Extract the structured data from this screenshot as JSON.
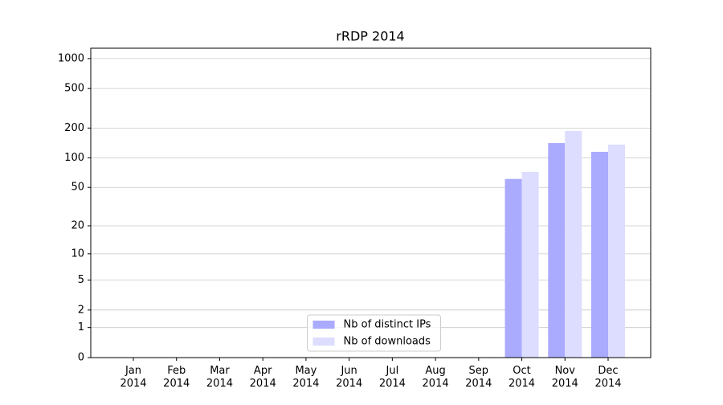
{
  "chart_data": {
    "type": "bar",
    "title": "rRDP 2014",
    "categories": [
      "Jan\n2014",
      "Feb\n2014",
      "Mar\n2014",
      "Apr\n2014",
      "May\n2014",
      "Jun\n2014",
      "Jul\n2014",
      "Aug\n2014",
      "Sep\n2014",
      "Oct\n2014",
      "Nov\n2014",
      "Dec\n2014"
    ],
    "series": [
      {
        "name": "Nb of distinct IPs",
        "color": "#aaaaff",
        "values": [
          0,
          0,
          0,
          0,
          0,
          0,
          0,
          0,
          0,
          61,
          141,
          115
        ]
      },
      {
        "name": "Nb of downloads",
        "color": "#ddddff",
        "values": [
          0,
          0,
          0,
          0,
          0,
          0,
          0,
          0,
          0,
          72,
          187,
          136
        ]
      }
    ],
    "yscale": "log1p",
    "ylim": [
      0,
      1270
    ],
    "yticks": [
      0,
      1,
      2,
      5,
      10,
      20,
      50,
      100,
      200,
      500,
      1000
    ],
    "grid": true,
    "legend": "lower center"
  }
}
